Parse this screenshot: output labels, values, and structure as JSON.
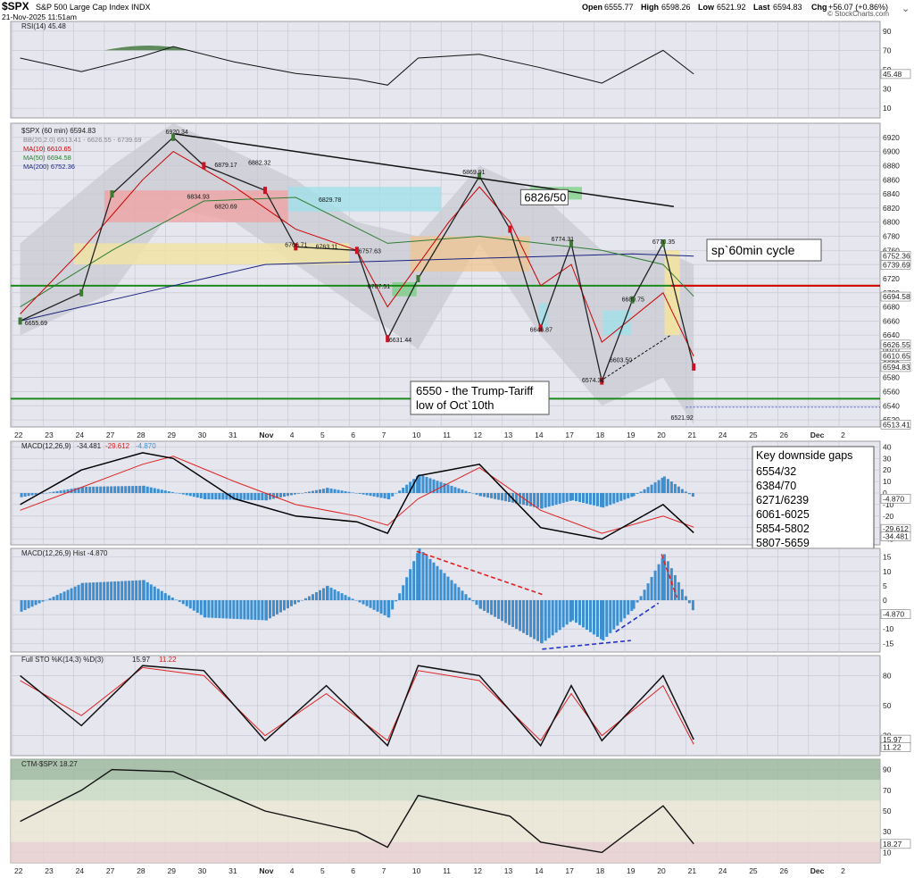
{
  "header": {
    "symbol": "$SPX",
    "name": "S&P 500 Large Cap Index",
    "exchange": "INDX",
    "datetime": "21-Nov-2025 11:51am",
    "open_label": "Open",
    "open": "6555.77",
    "high_label": "High",
    "high": "6598.26",
    "low_label": "Low",
    "low": "6521.92",
    "last_label": "Last",
    "last": "6594.83",
    "chg_label": "Chg",
    "chg": "+56.07 (+0.86%)",
    "watermark": "© StockCharts.com"
  },
  "x_axis": {
    "labels": [
      "22",
      "23",
      "24",
      "27",
      "28",
      "29",
      "30",
      "31",
      "Nov",
      "4",
      "5",
      "6",
      "7",
      "10",
      "11",
      "12",
      "13",
      "14",
      "17",
      "18",
      "19",
      "20",
      "21",
      "24",
      "25",
      "26",
      "Dec",
      "2"
    ]
  },
  "rsi_panel": {
    "title": "RSI(14) 45.48",
    "ticks": [
      "90",
      "70",
      "50",
      "30",
      "10"
    ],
    "current": "45.48"
  },
  "price_panel": {
    "title": "$SPX (60 min) 6594.83",
    "legend": [
      {
        "text": "BB(20,2.0) 6513.41 - 6626.55 - 6739.69",
        "color": "#888888"
      },
      {
        "text": "MA(10) 6610.65",
        "color": "#cc0000"
      },
      {
        "text": "MA(50) 6694.58",
        "color": "#2e7d32"
      },
      {
        "text": "MA(200) 6752.36",
        "color": "#1a237e"
      }
    ],
    "ticks": [
      "6920",
      "6900",
      "6880",
      "6860",
      "6840",
      "6820",
      "6800",
      "6780",
      "6760",
      "6740",
      "6720",
      "6700",
      "6680",
      "6660",
      "6640",
      "6620",
      "6600",
      "6580",
      "6560",
      "6540",
      "6520"
    ],
    "right_labels": [
      "6752.36",
      "6739.69",
      "6694.58",
      "6626.55",
      "6610.65",
      "6594.83",
      "6513.41"
    ],
    "point_labels": [
      "6920.34",
      "6879.17",
      "6882.32",
      "6834.93",
      "6820.69",
      "6829.78",
      "6869.91",
      "6766.71",
      "6763.11",
      "6757.63",
      "6707.51",
      "6631.44",
      "6655.69",
      "6774.31",
      "6770.35",
      "6689.75",
      "6646.87",
      "6603.50",
      "6574.32",
      "6521.92"
    ],
    "annotations": {
      "cycle": "sp`60min cycle",
      "gap_target": "6826/50",
      "trump_line1": "6550 - the Trump-Tariff",
      "trump_line2": "low of Oct`10th"
    }
  },
  "macd_panel": {
    "title_prefix": "MACD(12,26,9)",
    "macd": "-34.481",
    "signal": "-29.612",
    "hist": "-4.870",
    "ticks": [
      "40",
      "30",
      "20",
      "10",
      "0",
      "-10",
      "-20",
      "-30",
      "-40"
    ],
    "right_labels": [
      "-4.870",
      "-29.612",
      "-34.481"
    ],
    "gaps_title": "Key downside gaps",
    "gaps": [
      "6554/32",
      "6384/70",
      "6271/6239",
      "6061-6025",
      "5854-5802",
      "5807-5659"
    ]
  },
  "hist_panel": {
    "title": "MACD(12,26,9) Hist -4.870",
    "ticks": [
      "15",
      "10",
      "5",
      "0",
      "-5",
      "-10",
      "-15"
    ],
    "current": "-4.870"
  },
  "sto_panel": {
    "title_prefix": "Full STO %K(14,3) %D(3)",
    "k": "15.97",
    "d": "11.22",
    "ticks": [
      "80",
      "50",
      "20"
    ]
  },
  "ctm_panel": {
    "title": "CTM-$SPX 18.27",
    "ticks": [
      "90",
      "70",
      "50",
      "30",
      "10"
    ],
    "current": "18.27"
  },
  "colors": {
    "panel_bg": "#e6e6ef",
    "grid": "#c9c9d6",
    "price_up": "#3b7a30",
    "price_down": "#cc1122",
    "macd_line": "#000000",
    "signal_line": "#e02020",
    "hist_bar": "#3d8fd0",
    "green_line": "#1b8a1b",
    "red_line": "#e00000"
  },
  "chart_data": [
    {
      "type": "line",
      "title": "RSI(14) 45.48",
      "x": [
        "Oct 22",
        "Oct 24",
        "Oct 28",
        "Oct 29",
        "Oct 31",
        "Nov 4",
        "Nov 6",
        "Nov 7",
        "Nov 10",
        "Nov 12",
        "Nov 14",
        "Nov 18",
        "Nov 20",
        "Nov 21"
      ],
      "series": [
        {
          "name": "RSI(14)",
          "values": [
            62,
            48,
            64,
            74,
            58,
            46,
            40,
            34,
            62,
            66,
            52,
            36,
            70,
            45.48
          ]
        }
      ],
      "ylim": [
        0,
        100
      ]
    },
    {
      "type": "line",
      "title": "$SPX (60 min) 6594.83",
      "x": [
        "Oct 22",
        "Oct 24",
        "Oct 27",
        "Oct 29",
        "Oct 30",
        "Nov 3",
        "Nov 4",
        "Nov 6",
        "Nov 7",
        "Nov 10",
        "Nov 12",
        "Nov 13",
        "Nov 14",
        "Nov 17",
        "Nov 18",
        "Nov 19",
        "Nov 20",
        "Nov 21"
      ],
      "series": [
        {
          "name": "$SPX",
          "values": [
            6660,
            6700,
            6840,
            6920,
            6880,
            6845,
            6765,
            6760,
            6635,
            6720,
            6865,
            6790,
            6650,
            6770,
            6575,
            6690,
            6770,
            6594.83
          ]
        }
      ],
      "ylim": [
        6510,
        6940
      ]
    },
    {
      "type": "line",
      "title": "MACD(12,26,9)",
      "x": [
        "Oct 22",
        "Oct 24",
        "Oct 28",
        "Oct 29",
        "Oct 31",
        "Nov 4",
        "Nov 6",
        "Nov 7",
        "Nov 10",
        "Nov 12",
        "Nov 14",
        "Nov 18",
        "Nov 20",
        "Nov 21"
      ],
      "series": [
        {
          "name": "MACD",
          "values": [
            -10,
            20,
            35,
            30,
            -5,
            -20,
            -25,
            -35,
            15,
            25,
            -30,
            -40,
            -10,
            -34.481
          ]
        },
        {
          "name": "Signal",
          "values": [
            -15,
            5,
            25,
            32,
            10,
            -10,
            -20,
            -28,
            -5,
            22,
            -15,
            -35,
            -20,
            -29.612
          ]
        }
      ],
      "ylim": [
        -45,
        45
      ]
    },
    {
      "type": "bar",
      "title": "MACD(12,26,9) Hist -4.870",
      "x": [
        "Oct 22",
        "Oct 24",
        "Oct 28",
        "Oct 30",
        "Nov 3",
        "Nov 5",
        "Nov 7",
        "Nov 10",
        "Nov 12",
        "Nov 14",
        "Nov 17",
        "Nov 18",
        "Nov 19",
        "Nov 20",
        "Nov 21"
      ],
      "values": [
        -4,
        6,
        7,
        -6,
        -7,
        5,
        -6,
        18,
        -3,
        -15,
        -7,
        -14,
        -3,
        16,
        -4.87
      ],
      "ylim": [
        -18,
        18
      ]
    },
    {
      "type": "line",
      "title": "Full STO %K(14,3) %D(3)",
      "x": [
        "Oct 22",
        "Oct 24",
        "Oct 28",
        "Oct 30",
        "Nov 3",
        "Nov 5",
        "Nov 7",
        "Nov 10",
        "Nov 12",
        "Nov 14",
        "Nov 17",
        "Nov 18",
        "Nov 20",
        "Nov 21"
      ],
      "series": [
        {
          "name": "%K",
          "values": [
            80,
            30,
            90,
            85,
            15,
            70,
            10,
            90,
            80,
            10,
            70,
            15,
            80,
            15.97
          ]
        },
        {
          "name": "%D",
          "values": [
            75,
            40,
            88,
            80,
            20,
            62,
            15,
            85,
            75,
            15,
            62,
            20,
            70,
            11.22
          ]
        }
      ],
      "ylim": [
        0,
        100
      ]
    },
    {
      "type": "line",
      "title": "CTM-$SPX 18.27",
      "x": [
        "Oct 22",
        "Oct 24",
        "Oct 27",
        "Oct 29",
        "Nov 3",
        "Nov 6",
        "Nov 7",
        "Nov 10",
        "Nov 13",
        "Nov 14",
        "Nov 18",
        "Nov 20",
        "Nov 21"
      ],
      "series": [
        {
          "name": "CTM-$SPX",
          "values": [
            40,
            70,
            90,
            88,
            50,
            30,
            15,
            65,
            45,
            20,
            10,
            55,
            18.27
          ]
        }
      ],
      "ylim": [
        0,
        100
      ]
    }
  ]
}
